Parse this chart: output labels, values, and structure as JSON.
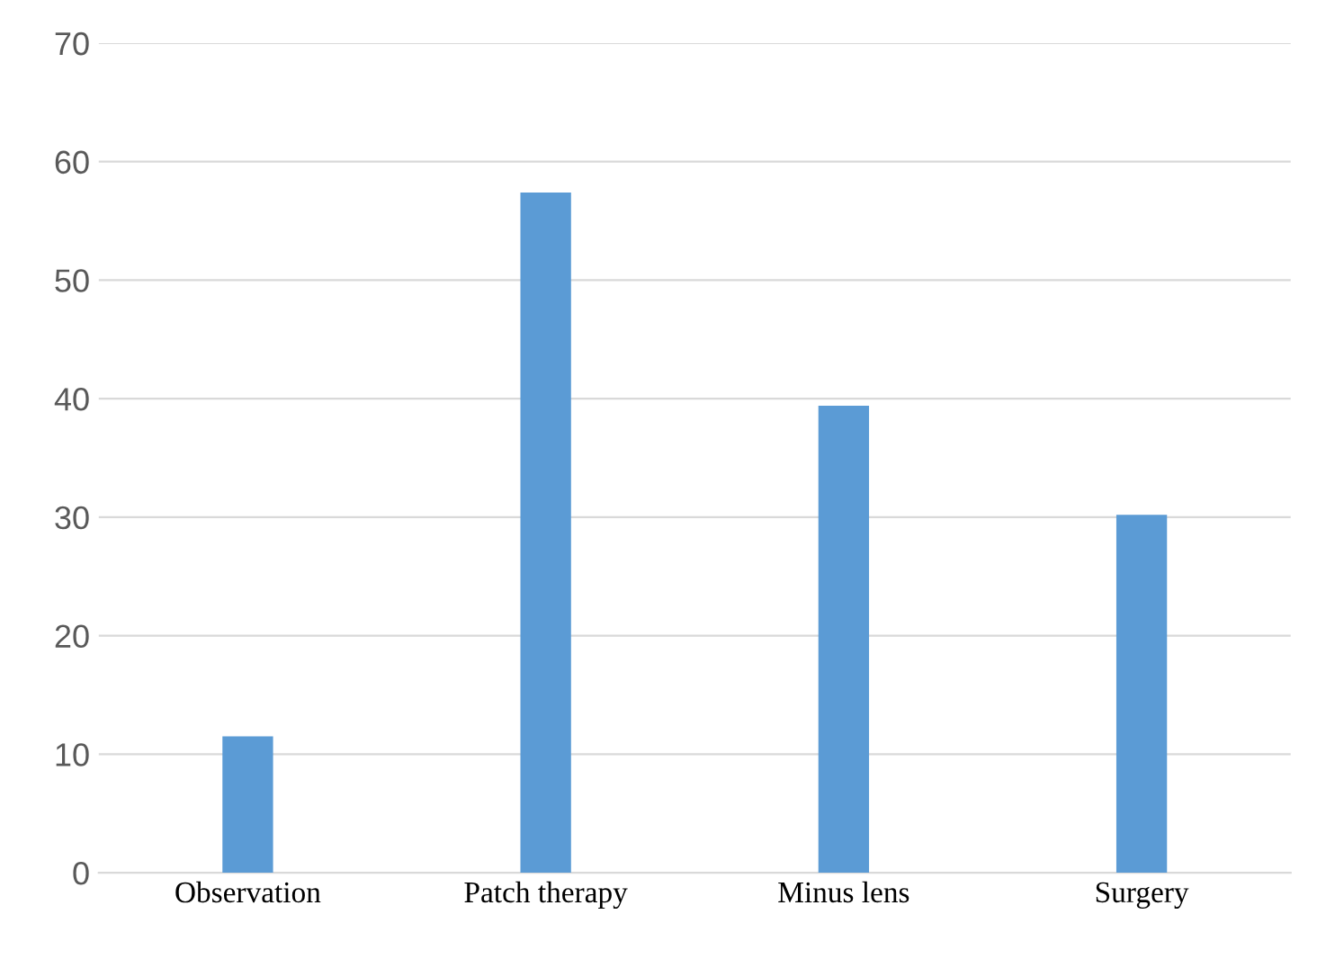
{
  "chart_data": {
    "type": "bar",
    "categories": [
      "Observation",
      "Patch therapy",
      "Minus lens",
      "Surgery"
    ],
    "values": [
      11.5,
      57.4,
      39.4,
      30.2
    ],
    "color": "#5b9bd5",
    "ylim": [
      0,
      70
    ],
    "yticks": [
      0,
      10,
      20,
      30,
      40,
      50,
      60,
      70
    ],
    "grid": "y"
  }
}
